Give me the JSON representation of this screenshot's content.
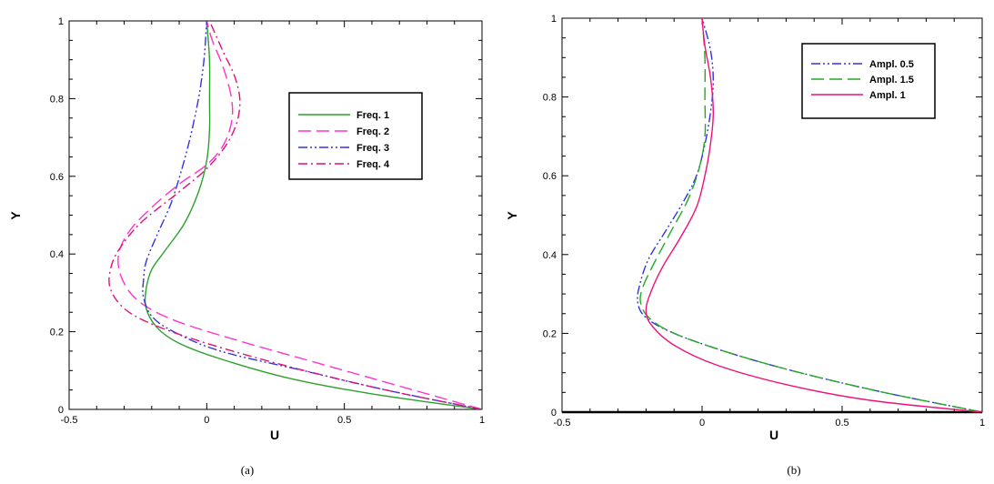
{
  "chart_data": [
    {
      "type": "line",
      "caption": "(a)",
      "xlabel": "U",
      "ylabel": "Y",
      "xlim": [
        -0.5,
        1
      ],
      "ylim": [
        0,
        1
      ],
      "xticks": [
        "-0.5",
        "0",
        "0.5",
        "1"
      ],
      "yticks": [
        "0",
        "0.2",
        "0.4",
        "0.6",
        "0.8",
        "1"
      ],
      "grid": false,
      "legend_position": "top-right",
      "series": [
        {
          "name": "Freq. 1",
          "color": "#2ca02c",
          "dash": "solid",
          "points": [
            [
              1.0,
              0.0
            ],
            [
              0.6,
              0.04
            ],
            [
              0.3,
              0.08
            ],
            [
              0.05,
              0.13
            ],
            [
              -0.1,
              0.17
            ],
            [
              -0.18,
              0.21
            ],
            [
              -0.22,
              0.26
            ],
            [
              -0.22,
              0.31
            ],
            [
              -0.2,
              0.36
            ],
            [
              -0.15,
              0.41
            ],
            [
              -0.08,
              0.48
            ],
            [
              -0.03,
              0.56
            ],
            [
              0.0,
              0.64
            ],
            [
              0.01,
              0.72
            ],
            [
              0.01,
              0.8
            ],
            [
              0.01,
              0.9
            ],
            [
              0.0,
              1.0
            ]
          ]
        },
        {
          "name": "Freq. 2",
          "color": "#ff33cc",
          "dash": "long-dash",
          "points": [
            [
              1.0,
              0.0
            ],
            [
              0.7,
              0.06
            ],
            [
              0.4,
              0.12
            ],
            [
              0.1,
              0.18
            ],
            [
              -0.12,
              0.23
            ],
            [
              -0.25,
              0.28
            ],
            [
              -0.31,
              0.34
            ],
            [
              -0.32,
              0.4
            ],
            [
              -0.28,
              0.46
            ],
            [
              -0.2,
              0.52
            ],
            [
              -0.1,
              0.58
            ],
            [
              0.0,
              0.63
            ],
            [
              0.06,
              0.68
            ],
            [
              0.09,
              0.74
            ],
            [
              0.09,
              0.8
            ],
            [
              0.06,
              0.88
            ],
            [
              0.02,
              0.95
            ],
            [
              0.0,
              1.0
            ]
          ]
        },
        {
          "name": "Freq. 3",
          "color": "#3333dd",
          "dash": "dash-dot-dot",
          "points": [
            [
              1.0,
              0.0
            ],
            [
              0.65,
              0.05
            ],
            [
              0.35,
              0.1
            ],
            [
              0.05,
              0.15
            ],
            [
              -0.12,
              0.2
            ],
            [
              -0.2,
              0.24
            ],
            [
              -0.23,
              0.29
            ],
            [
              -0.23,
              0.33
            ],
            [
              -0.22,
              0.38
            ],
            [
              -0.18,
              0.45
            ],
            [
              -0.13,
              0.53
            ],
            [
              -0.09,
              0.62
            ],
            [
              -0.06,
              0.7
            ],
            [
              -0.03,
              0.8
            ],
            [
              -0.01,
              0.9
            ],
            [
              0.0,
              1.0
            ]
          ]
        },
        {
          "name": "Freq. 4",
          "color": "#dd1177",
          "dash": "dash-dot",
          "points": [
            [
              1.0,
              0.0
            ],
            [
              0.65,
              0.05
            ],
            [
              0.3,
              0.11
            ],
            [
              0.0,
              0.17
            ],
            [
              -0.2,
              0.22
            ],
            [
              -0.3,
              0.26
            ],
            [
              -0.35,
              0.31
            ],
            [
              -0.35,
              0.36
            ],
            [
              -0.32,
              0.41
            ],
            [
              -0.24,
              0.48
            ],
            [
              -0.1,
              0.56
            ],
            [
              0.0,
              0.62
            ],
            [
              0.07,
              0.68
            ],
            [
              0.11,
              0.74
            ],
            [
              0.12,
              0.8
            ],
            [
              0.1,
              0.86
            ],
            [
              0.06,
              0.92
            ],
            [
              0.01,
              1.0
            ]
          ]
        }
      ]
    },
    {
      "type": "line",
      "caption": "(b)",
      "xlabel": "U",
      "ylabel": "Y",
      "xlim": [
        -0.5,
        1
      ],
      "ylim": [
        0,
        1
      ],
      "xticks": [
        "-0.5",
        "0",
        "0.5",
        "1"
      ],
      "yticks": [
        "0",
        "0.2",
        "0.4",
        "0.6",
        "0.8",
        "1"
      ],
      "grid": false,
      "legend_position": "top-right",
      "series": [
        {
          "name": "Ampl. 0.5",
          "color": "#3333dd",
          "dash": "dash-dot-dot",
          "points": [
            [
              1.0,
              0.0
            ],
            [
              0.65,
              0.05
            ],
            [
              0.35,
              0.1
            ],
            [
              0.1,
              0.15
            ],
            [
              -0.1,
              0.2
            ],
            [
              -0.2,
              0.24
            ],
            [
              -0.23,
              0.28
            ],
            [
              -0.22,
              0.33
            ],
            [
              -0.19,
              0.39
            ],
            [
              -0.13,
              0.46
            ],
            [
              -0.07,
              0.53
            ],
            [
              -0.02,
              0.6
            ],
            [
              0.01,
              0.68
            ],
            [
              0.03,
              0.76
            ],
            [
              0.04,
              0.84
            ],
            [
              0.03,
              0.92
            ],
            [
              0.0,
              1.0
            ]
          ]
        },
        {
          "name": "Ampl. 1.5",
          "color": "#22aa22",
          "dash": "long-dash",
          "points": [
            [
              1.0,
              0.0
            ],
            [
              0.65,
              0.05
            ],
            [
              0.35,
              0.1
            ],
            [
              0.1,
              0.15
            ],
            [
              -0.1,
              0.2
            ],
            [
              -0.19,
              0.24
            ],
            [
              -0.22,
              0.28
            ],
            [
              -0.21,
              0.32
            ],
            [
              -0.17,
              0.38
            ],
            [
              -0.11,
              0.46
            ],
            [
              -0.05,
              0.54
            ],
            [
              -0.01,
              0.62
            ],
            [
              0.01,
              0.7
            ],
            [
              0.01,
              0.8
            ],
            [
              0.01,
              0.9
            ],
            [
              0.0,
              1.0
            ]
          ]
        },
        {
          "name": "Ampl. 1",
          "color": "#ee1177",
          "dash": "solid",
          "points": [
            [
              1.0,
              0.0
            ],
            [
              0.6,
              0.03
            ],
            [
              0.3,
              0.07
            ],
            [
              0.05,
              0.12
            ],
            [
              -0.1,
              0.17
            ],
            [
              -0.18,
              0.22
            ],
            [
              -0.2,
              0.26
            ],
            [
              -0.18,
              0.31
            ],
            [
              -0.14,
              0.37
            ],
            [
              -0.08,
              0.44
            ],
            [
              -0.02,
              0.52
            ],
            [
              0.01,
              0.6
            ],
            [
              0.03,
              0.68
            ],
            [
              0.04,
              0.76
            ],
            [
              0.03,
              0.85
            ],
            [
              0.01,
              0.93
            ],
            [
              0.0,
              1.0
            ]
          ]
        }
      ]
    }
  ]
}
